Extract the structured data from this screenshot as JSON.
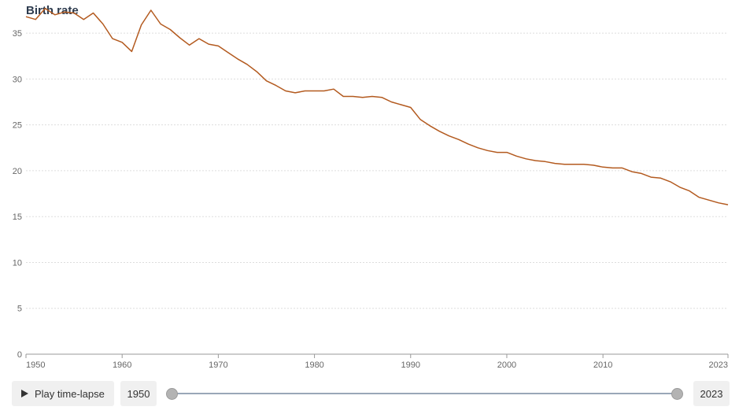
{
  "chart_data": {
    "type": "line",
    "title": "Birth rate",
    "xlim": [
      1950,
      2023
    ],
    "ylim": [
      0,
      37.5
    ],
    "y_ticks": [
      0,
      5,
      10,
      15,
      20,
      25,
      30,
      35
    ],
    "x_ticks": [
      1950,
      1960,
      1970,
      1980,
      1990,
      2000,
      2010,
      2023
    ],
    "grid": "horizontal dotted",
    "series": [
      {
        "color": "#b35a1f",
        "x": [
          1950,
          1951,
          1952,
          1953,
          1954,
          1955,
          1956,
          1957,
          1958,
          1959,
          1960,
          1961,
          1962,
          1963,
          1964,
          1965,
          1966,
          1967,
          1968,
          1969,
          1970,
          1971,
          1972,
          1973,
          1974,
          1975,
          1976,
          1977,
          1978,
          1979,
          1980,
          1981,
          1982,
          1983,
          1984,
          1985,
          1986,
          1987,
          1988,
          1989,
          1990,
          1991,
          1992,
          1993,
          1994,
          1995,
          1996,
          1997,
          1998,
          1999,
          2000,
          2001,
          2002,
          2003,
          2004,
          2005,
          2006,
          2007,
          2008,
          2009,
          2010,
          2011,
          2012,
          2013,
          2014,
          2015,
          2016,
          2017,
          2018,
          2019,
          2020,
          2021,
          2022,
          2023
        ],
        "values": [
          36.8,
          36.5,
          37.7,
          37.0,
          37.3,
          37.2,
          36.5,
          37.2,
          36.0,
          34.4,
          34.0,
          33.0,
          35.9,
          37.5,
          36.0,
          35.4,
          34.5,
          33.7,
          34.4,
          33.8,
          33.6,
          32.9,
          32.2,
          31.6,
          30.8,
          29.8,
          29.3,
          28.7,
          28.5,
          28.7,
          28.7,
          28.7,
          28.9,
          28.1,
          28.1,
          28.0,
          28.1,
          28.0,
          27.5,
          27.2,
          26.9,
          25.6,
          24.9,
          24.3,
          23.8,
          23.4,
          22.9,
          22.5,
          22.2,
          22.0,
          22.0,
          21.6,
          21.3,
          21.1,
          21.0,
          20.8,
          20.7,
          20.7,
          20.7,
          20.6,
          20.4,
          20.3,
          20.3,
          19.9,
          19.7,
          19.3,
          19.2,
          18.8,
          18.2,
          17.8,
          17.1,
          16.8,
          16.5,
          16.3
        ]
      }
    ]
  },
  "controls": {
    "play_label": "Play time-lapse",
    "play_icon": "play-icon",
    "start_year": "1950",
    "end_year": "2023"
  }
}
